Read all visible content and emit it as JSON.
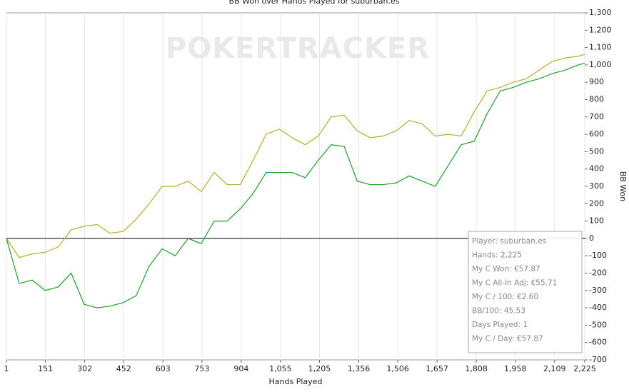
{
  "chart_data": {
    "type": "line",
    "title": "BB Won over Hands Played for suburban.es",
    "watermark": "POKERTRACKER",
    "x_label": "Hands Played",
    "y_label": "BB Won",
    "x": [
      1,
      50,
      100,
      150,
      200,
      250,
      300,
      350,
      400,
      450,
      500,
      550,
      600,
      650,
      700,
      750,
      800,
      850,
      900,
      950,
      1000,
      1050,
      1100,
      1150,
      1200,
      1250,
      1300,
      1350,
      1400,
      1450,
      1500,
      1550,
      1600,
      1650,
      1700,
      1750,
      1800,
      1850,
      1900,
      1950,
      2000,
      2050,
      2100,
      2150,
      2200,
      2225
    ],
    "series": [
      {
        "color": "#b5ad2c",
        "values": [
          0,
          -110,
          -90,
          -80,
          -50,
          50,
          70,
          80,
          30,
          40,
          110,
          200,
          300,
          300,
          330,
          270,
          380,
          310,
          310,
          450,
          600,
          630,
          580,
          540,
          590,
          700,
          710,
          620,
          580,
          590,
          620,
          680,
          660,
          590,
          600,
          590,
          730,
          850,
          870,
          900,
          920,
          970,
          1020,
          1040,
          1050,
          1060
        ]
      },
      {
        "color": "#1f9e2a",
        "values": [
          0,
          -260,
          -240,
          -300,
          -280,
          -200,
          -380,
          -400,
          -390,
          -370,
          -330,
          -160,
          -60,
          -100,
          0,
          -30,
          100,
          100,
          170,
          260,
          380,
          380,
          380,
          350,
          450,
          540,
          530,
          330,
          310,
          310,
          320,
          360,
          330,
          300,
          420,
          540,
          560,
          720,
          850,
          870,
          900,
          920,
          950,
          970,
          1000,
          1010
        ]
      }
    ],
    "xlim": [
      1,
      2225
    ],
    "xticks": [
      1,
      151,
      302,
      452,
      603,
      753,
      904,
      {
        "value": 1055,
        "label": "1,055"
      },
      {
        "value": 1205,
        "label": "1,205"
      },
      {
        "value": 1356,
        "label": "1,356"
      },
      {
        "value": 1506,
        "label": "1,506"
      },
      {
        "value": 1657,
        "label": "1,657"
      },
      {
        "value": 1808,
        "label": "1,808"
      },
      {
        "value": 1958,
        "label": "1,958"
      },
      {
        "value": 2109,
        "label": "2,109"
      },
      {
        "value": 2225,
        "label": "2,225"
      }
    ],
    "ylim": [
      -700,
      1300
    ],
    "yticks": [
      -700,
      -600,
      -500,
      -400,
      -300,
      -200,
      -100,
      0,
      100,
      200,
      300,
      400,
      500,
      600,
      700,
      800,
      900,
      {
        "value": 1000,
        "label": "1,000"
      },
      {
        "value": 1100,
        "label": "1,100"
      },
      {
        "value": 1200,
        "label": "1,200"
      },
      {
        "value": 1300,
        "label": "1,300"
      }
    ],
    "grid": true,
    "stats": [
      "Player: suburban.es",
      "Hands: 2,225",
      "My C Won: €57.87",
      "My C All-In Adj: €55.71",
      "My C / 100: €2.60",
      "BB/100: 45.53",
      "Days Played: 1",
      "My C / Day: €57.87"
    ]
  }
}
